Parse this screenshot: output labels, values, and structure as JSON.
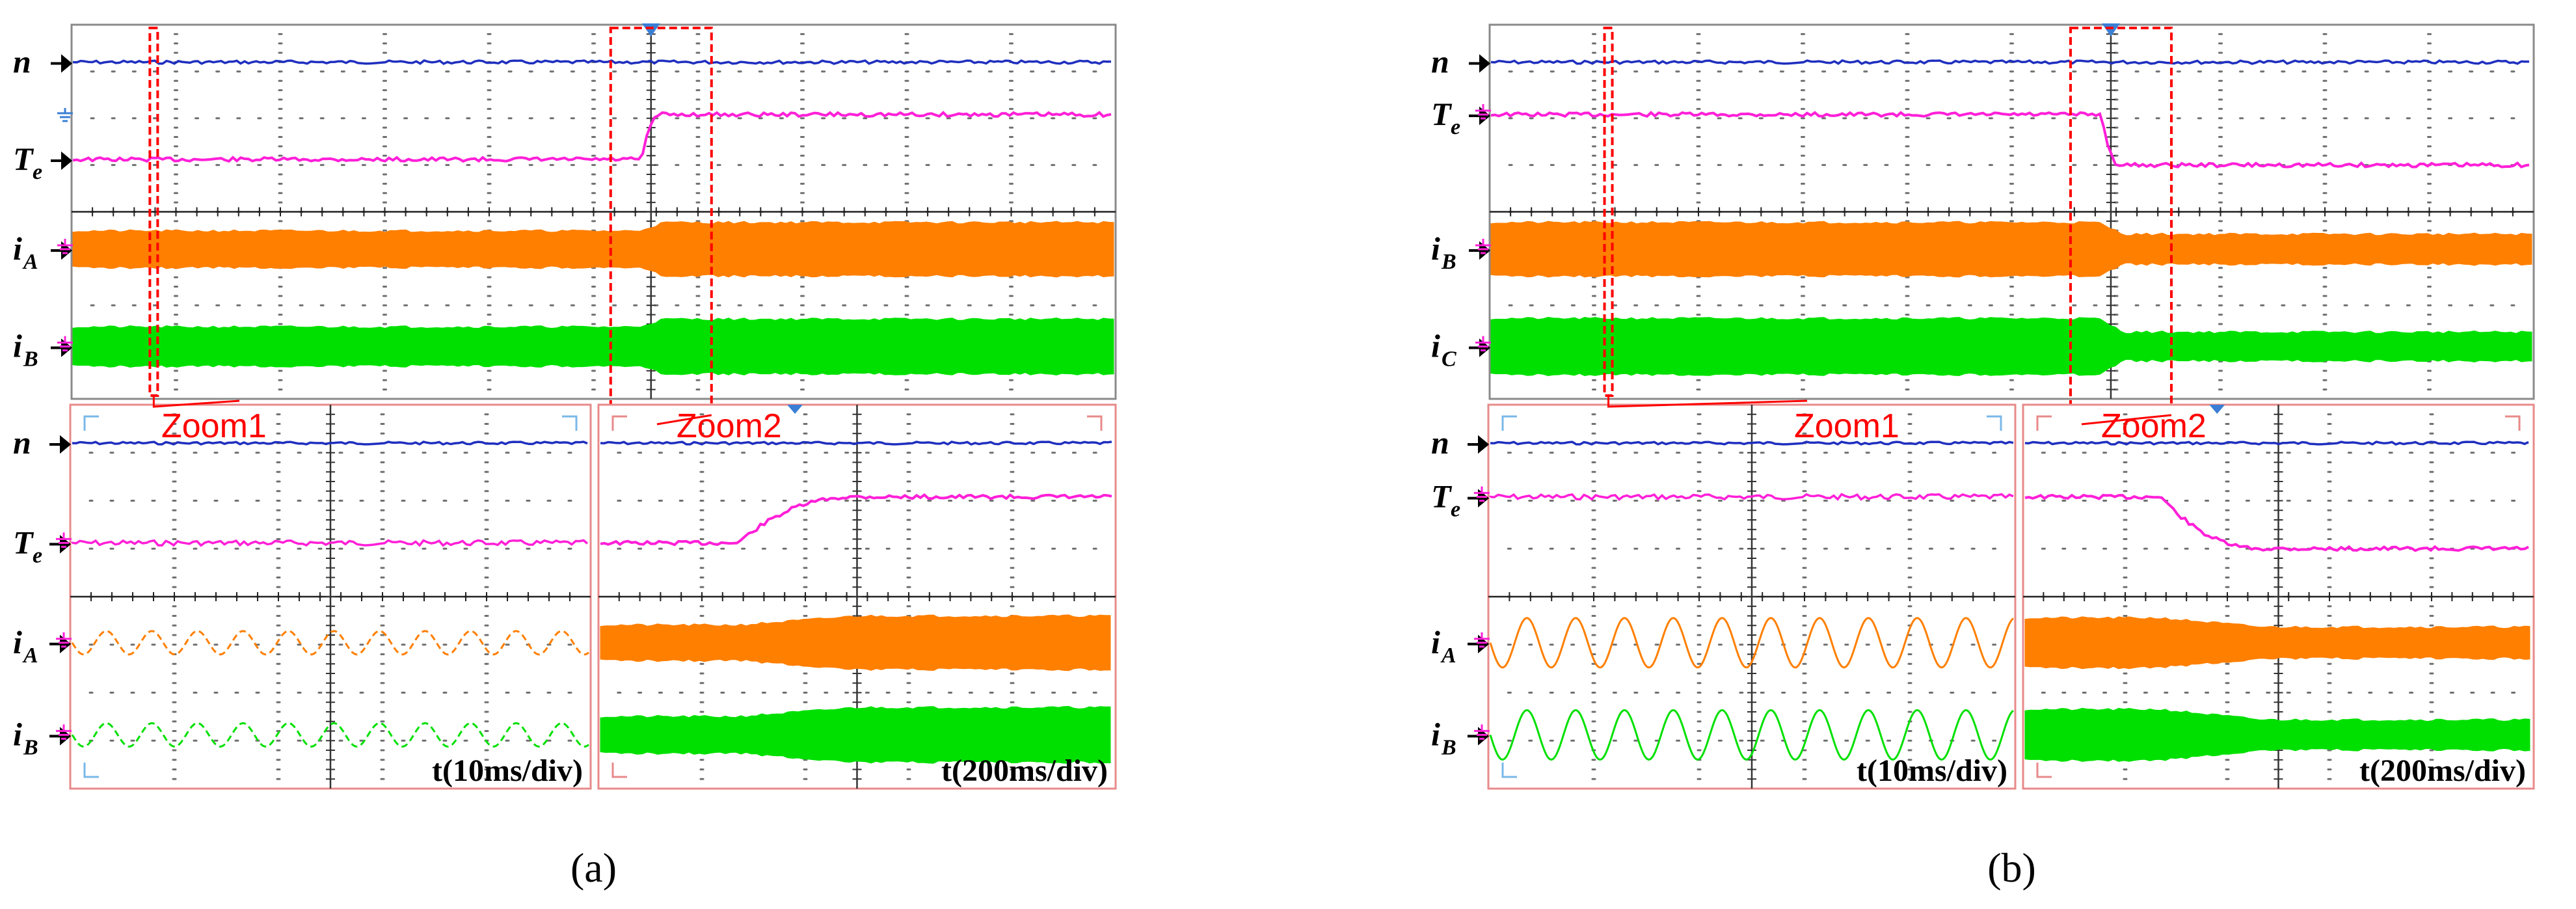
{
  "colors": {
    "n": "#1f2fbf",
    "Te": "#ff1fd8",
    "iA": "#ff7f00",
    "iB": "#00e000",
    "zoom_box": "#ff0000",
    "frame": "#8a8a8a",
    "zoom_frame": "#e88a8a",
    "grid": "#707070",
    "marker": "#3a7fd5"
  },
  "icons": [
    "channel-arrow-icon",
    "ground-icon",
    "trigger-marker-icon",
    "zoom-arrow-icon",
    "cursor-corner-icon"
  ],
  "chart_data": [
    {
      "type": "line",
      "caption": "(a)",
      "panels": [
        {
          "name": "main",
          "channels": [
            {
              "symbol": "n",
              "subscript": ""
            },
            {
              "symbol": "T",
              "subscript": "e"
            },
            {
              "symbol": "i",
              "subscript": "A"
            },
            {
              "symbol": "i",
              "subscript": "B"
            }
          ],
          "zoom_boxes": [
            {
              "label": "Zoom1"
            },
            {
              "label": "Zoom2"
            }
          ]
        },
        {
          "name": "zoom1",
          "label": "Zoom1",
          "time_label": "t(10ms/div)",
          "channels": [
            {
              "symbol": "n",
              "subscript": ""
            },
            {
              "symbol": "T",
              "subscript": "e"
            },
            {
              "symbol": "i",
              "subscript": "A"
            },
            {
              "symbol": "i",
              "subscript": "B"
            }
          ]
        },
        {
          "name": "zoom2",
          "label": "Zoom2",
          "time_label": "t(200ms/div)"
        }
      ],
      "waveforms": {
        "n": "constant",
        "Te": "step increase at trigger",
        "iA": "amplitude increases at trigger",
        "iB": "amplitude increases at trigger"
      }
    },
    {
      "type": "line",
      "caption": "(b)",
      "panels": [
        {
          "name": "main",
          "channels": [
            {
              "symbol": "n",
              "subscript": ""
            },
            {
              "symbol": "T",
              "subscript": "e"
            },
            {
              "symbol": "i",
              "subscript": "B"
            },
            {
              "symbol": "i",
              "subscript": "C"
            }
          ],
          "zoom_boxes": [
            {
              "label": "Zoom1"
            },
            {
              "label": "Zoom2"
            }
          ]
        },
        {
          "name": "zoom1",
          "label": "Zoom1",
          "time_label": "t(10ms/div)",
          "channels": [
            {
              "symbol": "n",
              "subscript": ""
            },
            {
              "symbol": "T",
              "subscript": "e"
            },
            {
              "symbol": "i",
              "subscript": "A"
            },
            {
              "symbol": "i",
              "subscript": "B"
            }
          ]
        },
        {
          "name": "zoom2",
          "label": "Zoom2",
          "time_label": "t(200ms/div)"
        }
      ],
      "waveforms": {
        "n": "constant",
        "Te": "step decrease at trigger",
        "iA": "amplitude decreases at trigger",
        "iB": "amplitude decreases at trigger"
      }
    }
  ]
}
